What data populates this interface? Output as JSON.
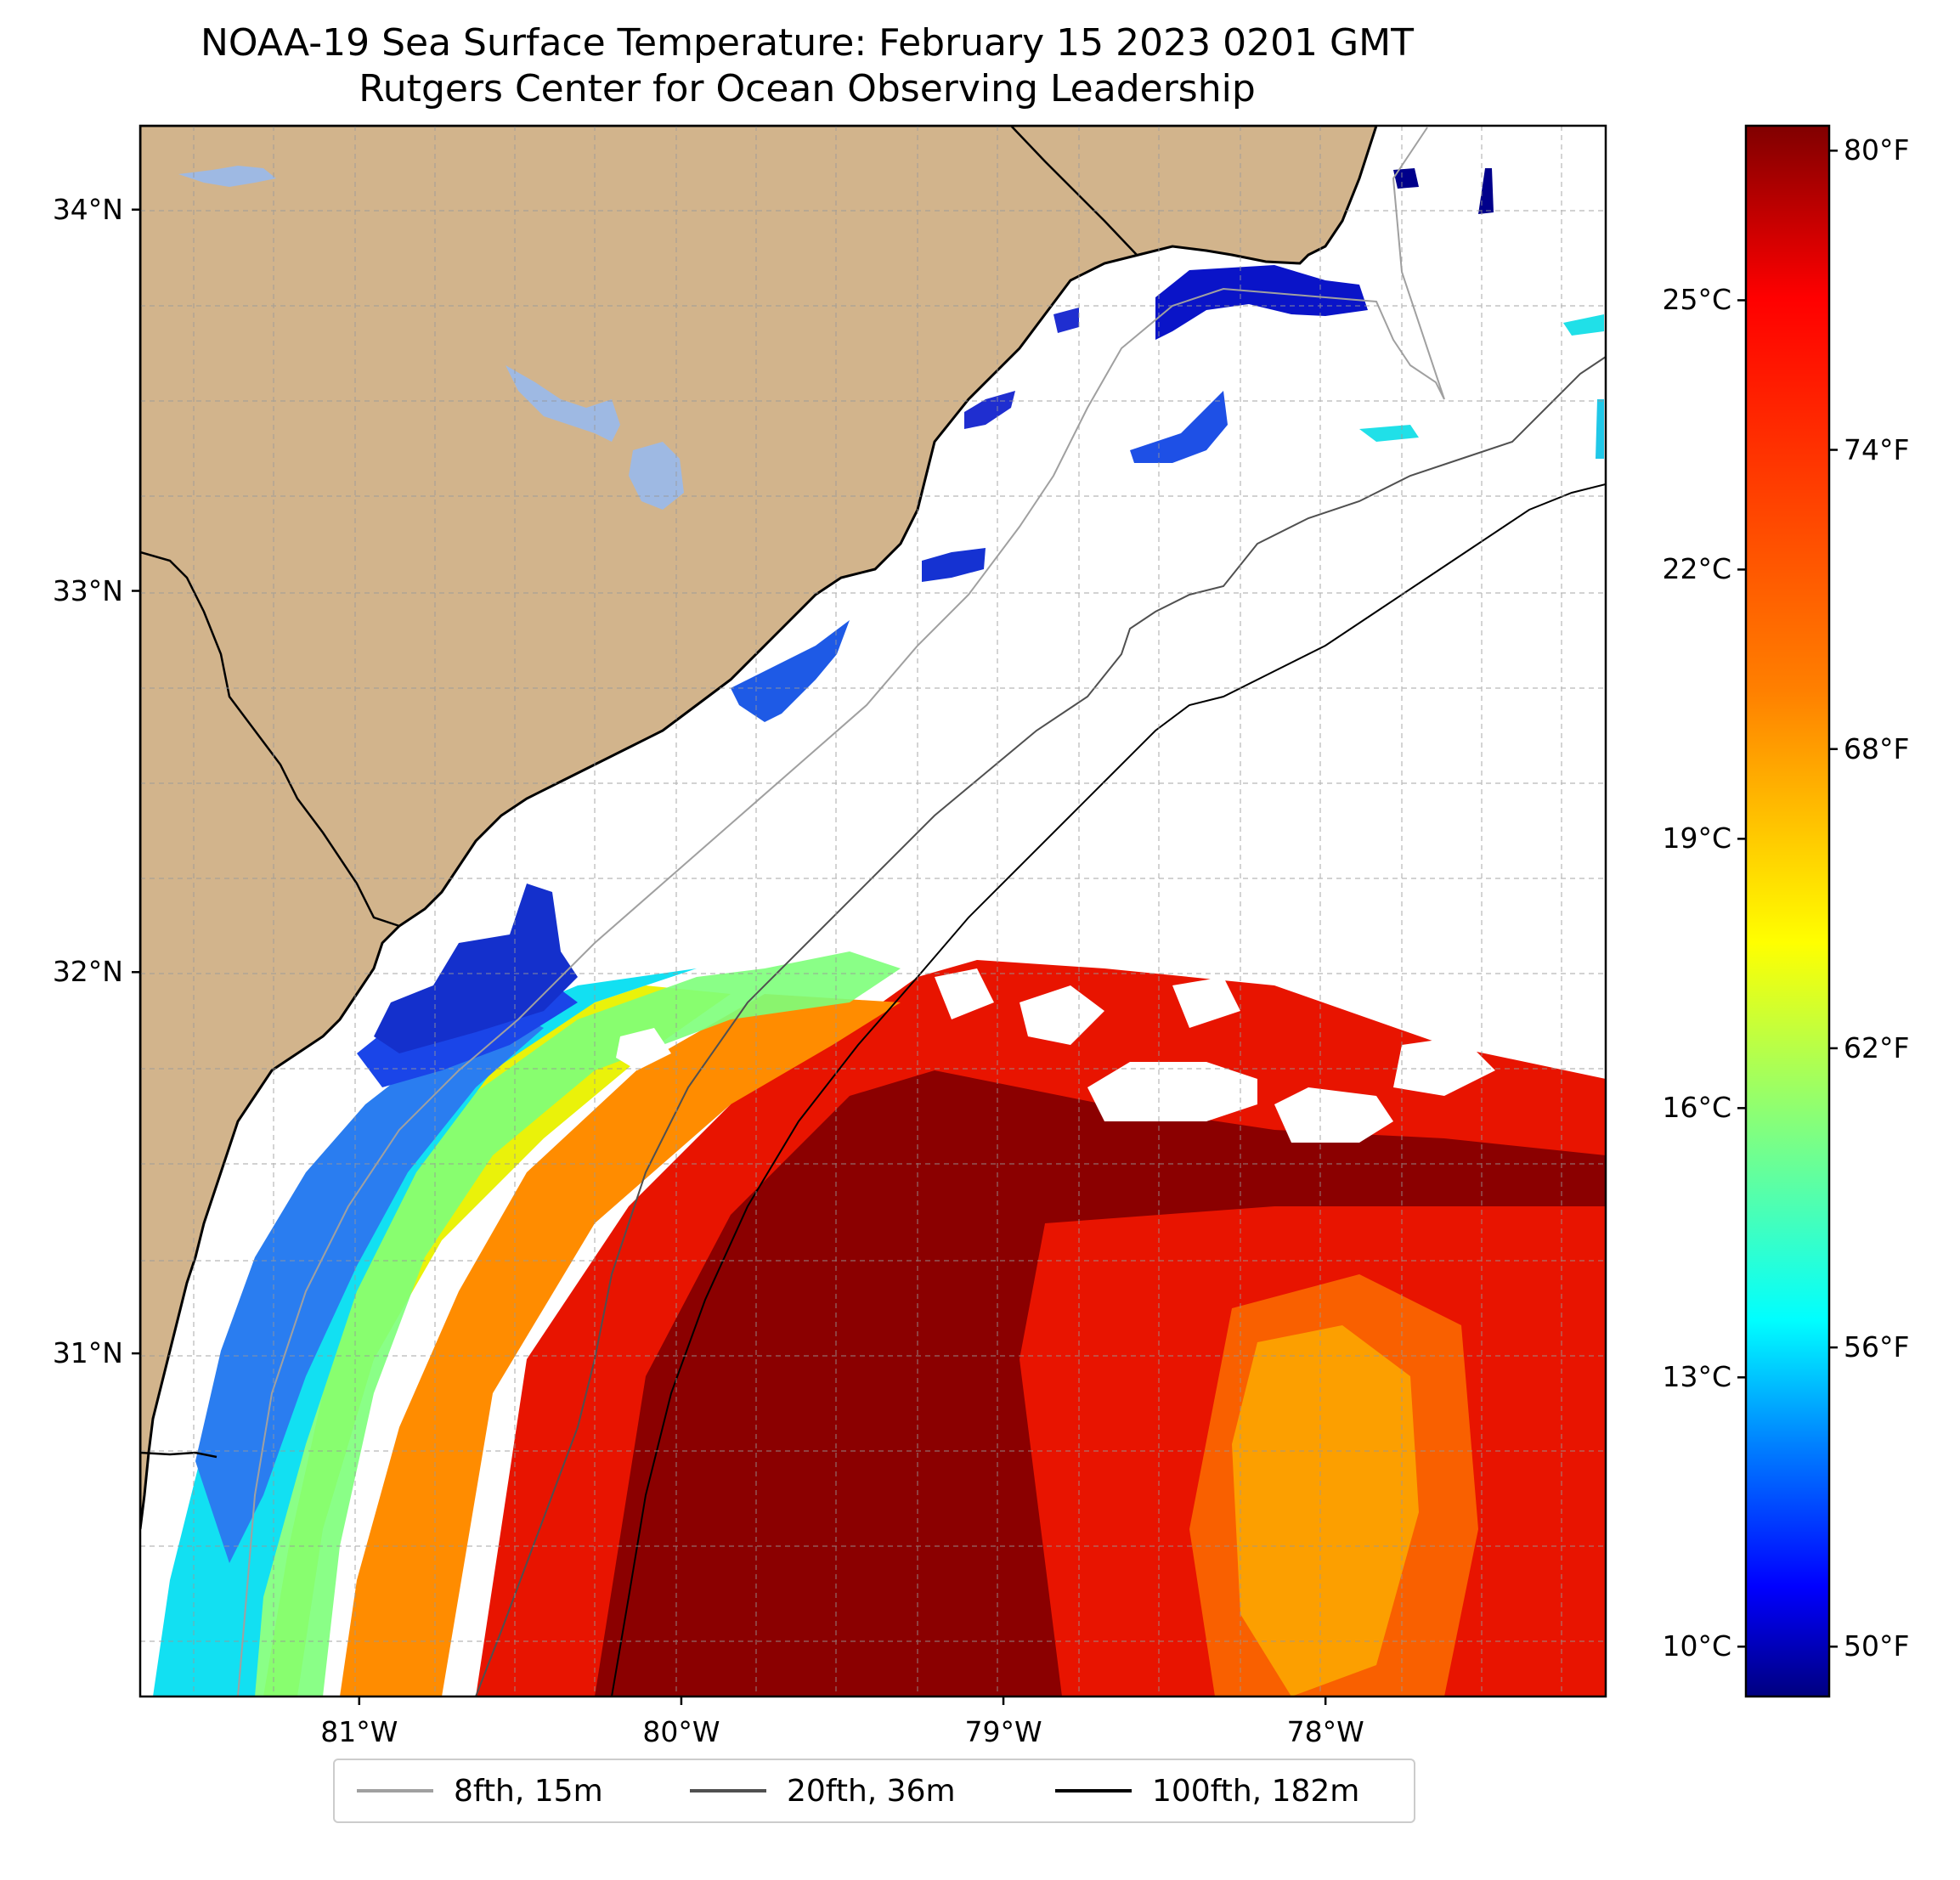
{
  "title": {
    "line1": "NOAA-19 Sea Surface Temperature: February 15 2023 0201 GMT",
    "line2": "Rutgers Center for Ocean Observing Leadership"
  },
  "map": {
    "lat_labels": [
      "34°N",
      "33°N",
      "32°N",
      "31°N"
    ],
    "lon_labels": [
      "81°W",
      "80°W",
      "79°W",
      "78°W"
    ],
    "lat_values": [
      34,
      33,
      32,
      31
    ],
    "lon_values": [
      -81,
      -80,
      -79,
      -78
    ],
    "lat_range": [
      30.1,
      34.22
    ],
    "lon_range": [
      -81.68,
      -77.13
    ],
    "gridlines": true,
    "land_color": "#d2b48c",
    "water_body_color": "#9eb9e3",
    "no_data_color": "#ffffff"
  },
  "colorbar": {
    "colormap": "jet",
    "fahrenheit_labels": [
      "80°F",
      "74°F",
      "68°F",
      "62°F",
      "56°F",
      "50°F"
    ],
    "fahrenheit_values": [
      80,
      74,
      68,
      62,
      56,
      50
    ],
    "celsius_labels": [
      "25°C",
      "22°C",
      "19°C",
      "16°C",
      "13°C",
      "10°C"
    ],
    "celsius_values": [
      25,
      22,
      19,
      16,
      13,
      10
    ],
    "range_f": [
      49,
      80.5
    ],
    "colors": [
      "#800000",
      "#ff0000",
      "#ff8000",
      "#ffff00",
      "#80ff80",
      "#00ffff",
      "#0080ff",
      "#0000ff",
      "#000080"
    ]
  },
  "legend": {
    "items": [
      {
        "label": "8fth, 15m",
        "color": "#a0a0a0"
      },
      {
        "label": "20fth, 36m",
        "color": "#505050"
      },
      {
        "label": "100fth, 182m",
        "color": "#000000"
      }
    ]
  }
}
